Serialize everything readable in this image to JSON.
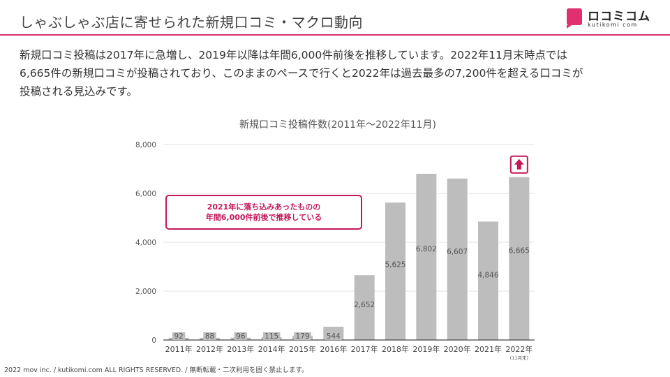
{
  "header": {
    "title": "しゃぶしゃぶ店に寄せられた新規口コミ・マクロ動向",
    "logo_text": "ロコミコム",
    "logo_sub": "kutikomi com",
    "accent_color": "#d6336c"
  },
  "description": {
    "lines": [
      "新規口コミ投稿は2017年に急増し、2019年以降は年間6,000件前後を推移しています。2022年11月末時点では",
      "6,665件の新規口コミが投稿されており、このままのペースで行くと2022年は過去最多の7,200件を超える口コミが",
      "投稿される見込みです。"
    ]
  },
  "chart_data": {
    "type": "bar",
    "title": "新規口コミ投稿件数(2011年～2022年11月)",
    "categories": [
      "2011年",
      "2012年",
      "2013年",
      "2014年",
      "2015年",
      "2016年",
      "2017年",
      "2018年",
      "2019年",
      "2020年",
      "2021年",
      "2022年"
    ],
    "category_note": "(11月末)",
    "values": [
      92,
      88,
      96,
      115,
      179,
      544,
      2652,
      5625,
      6802,
      6607,
      4846,
      6665
    ],
    "value_labels": [
      "92",
      "88",
      "96",
      "115",
      "179",
      "544",
      "2,652",
      "5,625",
      "6,802",
      "6,607",
      "4,846",
      "6,665"
    ],
    "ylim": [
      0,
      8000
    ],
    "yticks": [
      0,
      2000,
      4000,
      6000,
      8000
    ],
    "ytick_labels": [
      "0",
      "2,000",
      "4,000",
      "6,000",
      "8,000"
    ],
    "grid": true,
    "bar_color": "#bdbdbd",
    "annotation": {
      "lines": [
        "2021年に落ち込みあったものの",
        "年間6,000件前後で推移している"
      ],
      "color": "#c2185b"
    },
    "highlight": {
      "category": "2022年",
      "icon": "up-arrow-icon",
      "color": "#c2185b"
    }
  },
  "footer": {
    "note": "2022 mov inc. / kutikomi.com ALL RIGHTS RESERVED. / 無断転載・二次利用を固く禁止します。"
  }
}
